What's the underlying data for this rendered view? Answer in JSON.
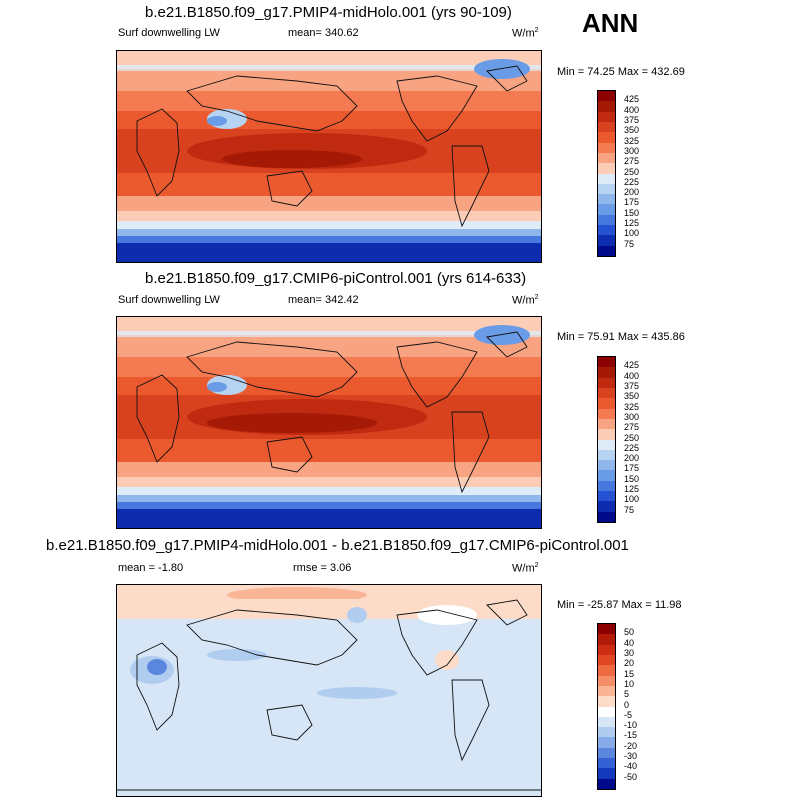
{
  "season": "ANN",
  "panels": [
    {
      "title": "b.e21.B1850.f09_g17.PMIP4-midHolo.001 (yrs 90-109)",
      "left_label": "Surf downwelling LW",
      "center_label": "mean= 340.62",
      "units": "W/m",
      "units_sup": "2",
      "minmax": "Min =  74.25 Max = 432.69",
      "type": "field",
      "cbar_labels": [
        "425",
        "400",
        "375",
        "350",
        "325",
        "300",
        "275",
        "250",
        "225",
        "200",
        "175",
        "150",
        "125",
        "100",
        "75"
      ],
      "cbar_colors": [
        "#8b0000",
        "#a41a04",
        "#c02a10",
        "#d9421e",
        "#ea5a2e",
        "#f47a52",
        "#f8a381",
        "#fbcdb7",
        "#dfecf7",
        "#b6d4f2",
        "#8fb7ec",
        "#6a9be6",
        "#4778dd",
        "#2552d3",
        "#0d2cae",
        "#000a8a"
      ]
    },
    {
      "title": "b.e21.B1850.f09_g17.CMIP6-piControl.001 (yrs 614-633)",
      "left_label": "Surf downwelling LW",
      "center_label": "mean= 342.42",
      "units": "W/m",
      "units_sup": "2",
      "minmax": "Min =  75.91 Max = 435.86",
      "type": "field",
      "cbar_labels": [
        "425",
        "400",
        "375",
        "350",
        "325",
        "300",
        "275",
        "250",
        "225",
        "200",
        "175",
        "150",
        "125",
        "100",
        "75"
      ],
      "cbar_colors": [
        "#8b0000",
        "#a41a04",
        "#c02a10",
        "#d9421e",
        "#ea5a2e",
        "#f47a52",
        "#f8a381",
        "#fbcdb7",
        "#dfecf7",
        "#b6d4f2",
        "#8fb7ec",
        "#6a9be6",
        "#4778dd",
        "#2552d3",
        "#0d2cae",
        "#000a8a"
      ]
    },
    {
      "title": "b.e21.B1850.f09_g17.PMIP4-midHolo.001 - b.e21.B1850.f09_g17.CMIP6-piControl.001",
      "left_label": "mean =  -1.80",
      "center_label": "rmse =  3.06",
      "units": "W/m",
      "units_sup": "2",
      "minmax": "Min = -25.87 Max =  11.98",
      "type": "diff",
      "cbar_labels": [
        "50",
        "40",
        "30",
        "20",
        "15",
        "10",
        "5",
        "0",
        "-5",
        "-10",
        "-15",
        "-20",
        "-30",
        "-40",
        "-50"
      ],
      "cbar_colors": [
        "#8b0000",
        "#b01a06",
        "#cc2d12",
        "#e04824",
        "#ee6a40",
        "#f58e68",
        "#f9b596",
        "#fcdcc8",
        "#ffffff",
        "#d6e6f6",
        "#b0cdf0",
        "#86abe8",
        "#5b86de",
        "#3561d6",
        "#1338bc",
        "#000a8a"
      ]
    }
  ]
}
